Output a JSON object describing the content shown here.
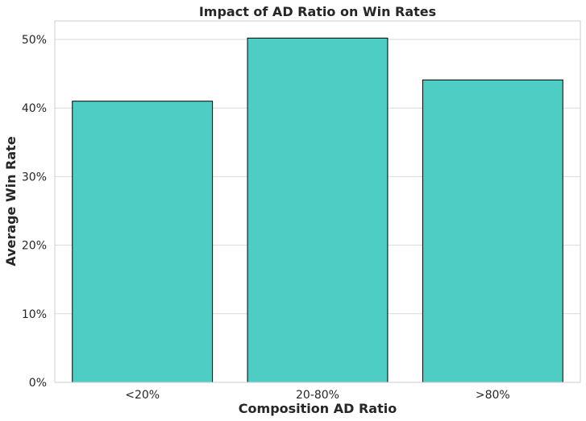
{
  "chart_data": {
    "type": "bar",
    "title": "Impact of AD Ratio on Win Rates",
    "xlabel": "Composition AD Ratio",
    "ylabel": "Average Win Rate",
    "categories": [
      "<20%",
      "20-80%",
      ">80%"
    ],
    "values": [
      0.41,
      0.502,
      0.441
    ],
    "ylim": [
      0,
      0.527
    ],
    "yticks": [
      0,
      0.1,
      0.2,
      0.3,
      0.4,
      0.5
    ],
    "ytick_labels": [
      "0%",
      "10%",
      "20%",
      "30%",
      "40%",
      "50%"
    ],
    "grid": "horizontal",
    "bar_color": "#4ecdc4",
    "bar_edge_color": "#000000",
    "grid_color": "#d9d9d9",
    "frame_color": "#cccccc"
  }
}
